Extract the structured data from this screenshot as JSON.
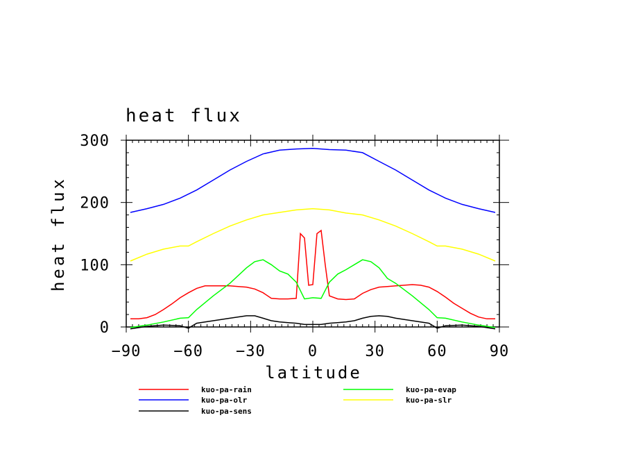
{
  "chart_data": {
    "type": "line",
    "title": "heat flux",
    "xlabel": "latitude",
    "ylabel": "heat flux",
    "xlim": [
      -90,
      90
    ],
    "ylim": [
      0,
      300
    ],
    "xticks": [
      -90,
      -60,
      -30,
      0,
      30,
      60,
      90
    ],
    "xtick_labels": [
      "−90",
      "−60",
      "−30",
      "0",
      "30",
      "60",
      "90"
    ],
    "yticks": [
      0,
      100,
      200,
      300
    ],
    "ytick_labels": [
      "0",
      "100",
      "200",
      "300"
    ],
    "legend_placement": "bottom",
    "series": [
      {
        "name": "kuo-pa-rain",
        "color": "#ff0000",
        "x": [
          -88,
          -84,
          -80,
          -76,
          -72,
          -68,
          -64,
          -60,
          -56,
          -52,
          -48,
          -44,
          -40,
          -36,
          -32,
          -28,
          -24,
          -20,
          -16,
          -12,
          -8,
          -6,
          -4,
          -2,
          0,
          2,
          4,
          6,
          8,
          12,
          16,
          20,
          24,
          28,
          32,
          36,
          40,
          44,
          48,
          52,
          56,
          60,
          64,
          68,
          72,
          76,
          80,
          84,
          88
        ],
        "y": [
          13,
          13,
          15,
          20,
          28,
          37,
          47,
          55,
          62,
          66,
          66,
          66,
          66,
          65,
          64,
          61,
          55,
          46,
          45,
          45,
          46,
          150,
          143,
          67,
          68,
          150,
          155,
          100,
          50,
          45,
          44,
          45,
          54,
          60,
          64,
          65,
          66,
          67,
          68,
          67,
          64,
          57,
          48,
          38,
          30,
          22,
          16,
          13,
          13
        ]
      },
      {
        "name": "kuo-pa-olr",
        "color": "#0000ff",
        "x": [
          -88,
          -80,
          -72,
          -64,
          -56,
          -48,
          -40,
          -32,
          -24,
          -16,
          -8,
          0,
          8,
          16,
          24,
          32,
          40,
          48,
          56,
          64,
          72,
          80,
          88
        ],
        "y": [
          184,
          190,
          197,
          207,
          220,
          236,
          252,
          266,
          278,
          284,
          286,
          287,
          285,
          284,
          280,
          266,
          252,
          236,
          220,
          207,
          197,
          190,
          184
        ]
      },
      {
        "name": "kuo-pa-sens",
        "color": "#000000",
        "x": [
          -88,
          -80,
          -72,
          -64,
          -60,
          -56,
          -48,
          -40,
          -32,
          -28,
          -24,
          -20,
          -16,
          -12,
          -8,
          -4,
          0,
          4,
          8,
          12,
          16,
          20,
          24,
          28,
          32,
          36,
          40,
          48,
          56,
          60,
          64,
          72,
          80,
          88
        ],
        "y": [
          -3,
          1,
          3,
          2,
          -2,
          6,
          10,
          14,
          18,
          18,
          14,
          10,
          8,
          7,
          6,
          4,
          4,
          4,
          6,
          7,
          8,
          10,
          14,
          17,
          18,
          17,
          14,
          10,
          6,
          -2,
          2,
          3,
          1,
          -3
        ]
      },
      {
        "name": "kuo-pa-evap",
        "color": "#00ff00",
        "x": [
          -88,
          -80,
          -72,
          -64,
          -60,
          -56,
          -48,
          -40,
          -32,
          -28,
          -24,
          -20,
          -16,
          -12,
          -8,
          -4,
          0,
          4,
          8,
          12,
          16,
          20,
          24,
          28,
          32,
          36,
          40,
          48,
          56,
          60,
          64,
          72,
          80,
          88
        ],
        "y": [
          -1,
          3,
          8,
          14,
          15,
          28,
          50,
          70,
          95,
          105,
          108,
          100,
          90,
          85,
          72,
          45,
          47,
          46,
          72,
          85,
          92,
          100,
          108,
          105,
          95,
          78,
          70,
          50,
          28,
          15,
          14,
          8,
          3,
          -1
        ]
      },
      {
        "name": "kuo-pa-slr",
        "color": "#ffff00",
        "x": [
          -88,
          -80,
          -72,
          -64,
          -60,
          -56,
          -48,
          -40,
          -32,
          -24,
          -16,
          -8,
          0,
          8,
          16,
          24,
          32,
          40,
          48,
          56,
          60,
          64,
          72,
          80,
          88
        ],
        "y": [
          106,
          117,
          125,
          130,
          130,
          137,
          150,
          162,
          172,
          180,
          184,
          188,
          190,
          188,
          183,
          180,
          172,
          162,
          150,
          137,
          130,
          130,
          125,
          117,
          106
        ]
      }
    ]
  }
}
